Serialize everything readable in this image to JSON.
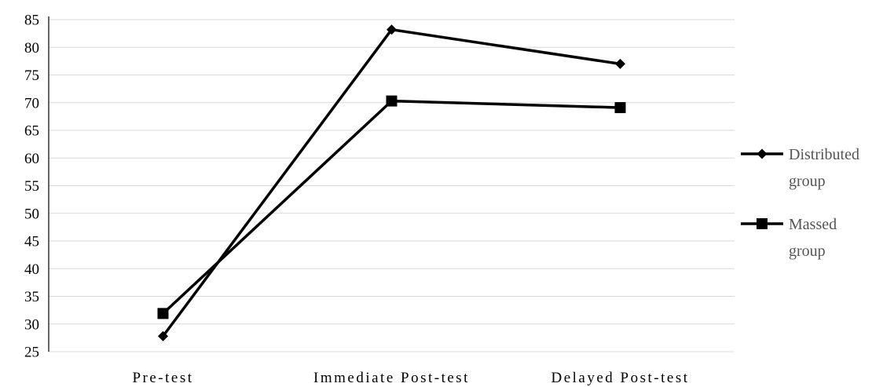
{
  "chart_data": {
    "type": "line",
    "title": "",
    "xlabel": "",
    "ylabel": "",
    "categories": [
      "Pre-test",
      "Immediate Post-test",
      "Delayed Post-test"
    ],
    "y_ticks": [
      "25",
      "30",
      "35",
      "40",
      "45",
      "50",
      "55",
      "60",
      "65",
      "70",
      "75",
      "80",
      "85"
    ],
    "ylim": [
      25,
      85
    ],
    "grid": "horizontal",
    "legend_position": "right",
    "series": [
      {
        "name": "Distributed group",
        "name_lines": [
          "Distributed",
          "group"
        ],
        "marker": "diamond",
        "color": "#000000",
        "values": [
          27.8,
          83.2,
          77.0
        ]
      },
      {
        "name": "Massed group",
        "name_lines": [
          "Massed",
          "group"
        ],
        "marker": "square",
        "color": "#000000",
        "values": [
          31.9,
          70.3,
          69.1
        ]
      }
    ]
  }
}
